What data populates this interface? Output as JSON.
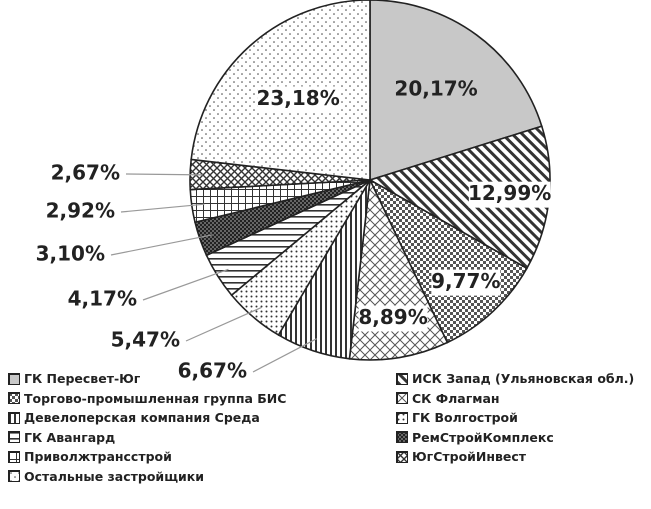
{
  "chart_data": {
    "type": "pie",
    "title": "",
    "slices": [
      {
        "name": "ГК Пересвет-Юг",
        "value": 20.17,
        "label": "20,17%",
        "pattern": "solid-gray"
      },
      {
        "name": "ИСК Запад (Ульяновская обл.)",
        "value": 12.99,
        "label": "12,99%",
        "pattern": "diag-right"
      },
      {
        "name": "Торгово-промышленная группа БИС",
        "value": 9.77,
        "label": "9,77%",
        "pattern": "dense-check"
      },
      {
        "name": "СК Флагман",
        "value": 8.89,
        "label": "8,89%",
        "pattern": "zigzag"
      },
      {
        "name": "Девелоперская компания Среда",
        "value": 6.67,
        "label": "6,67%",
        "pattern": "vertical-lines"
      },
      {
        "name": "ГК Волгострой",
        "value": 5.47,
        "label": "5,47%",
        "pattern": "dots"
      },
      {
        "name": "ГК Авангард",
        "value": 4.17,
        "label": "4,17%",
        "pattern": "horizontal-lines"
      },
      {
        "name": "РемСтройКомплекс",
        "value": 3.1,
        "label": "3,10%",
        "pattern": "dark-check"
      },
      {
        "name": "Приволжтрансстрой",
        "value": 2.92,
        "label": "2,92%",
        "pattern": "grid"
      },
      {
        "name": "ЮгСтройИнвест",
        "value": 2.67,
        "label": "2,67%",
        "pattern": "cross-hatch"
      },
      {
        "name": "Остальные застройщики",
        "value": 23.18,
        "label": "23,18%",
        "pattern": "sparse-dots"
      }
    ],
    "legend_position": "bottom",
    "legend_columns": 2,
    "colors": {
      "outline": "#222222",
      "gray": "#c8c8c8",
      "text": "#222222"
    }
  }
}
